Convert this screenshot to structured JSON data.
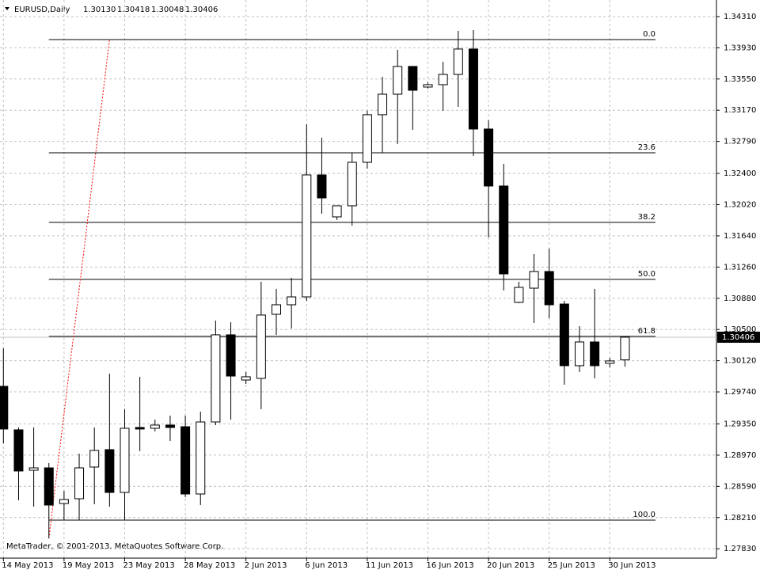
{
  "chart_data": {
    "type": "candlestick",
    "title": "EURUSD,Daily",
    "header_values": [
      "1.30130",
      "1.30418",
      "1.30048",
      "1.30406"
    ],
    "categories": [
      "14 May 2013",
      null,
      null,
      null,
      "19 May 2013",
      null,
      null,
      null,
      "23 May 2013",
      null,
      null,
      null,
      "28 May 2013",
      null,
      null,
      null,
      "2 Jun 2013",
      null,
      null,
      null,
      "6 Jun 2013",
      null,
      null,
      null,
      "11 Jun 2013",
      null,
      null,
      null,
      "16 Jun 2013",
      null,
      null,
      null,
      "20 Jun 2013",
      null,
      null,
      null,
      "25 Jun 2013",
      null,
      null,
      null,
      "30 Jun 2013",
      null
    ],
    "open": [
      1.29808,
      1.29278,
      1.28786,
      1.28815,
      1.28381,
      1.28439,
      1.28825,
      1.29037,
      1.28516,
      1.29307,
      1.29297,
      1.29336,
      1.29316,
      1.28497,
      1.29374,
      1.30435,
      1.29885,
      1.29905,
      1.30685,
      1.30801,
      1.30897,
      1.32382,
      1.31871,
      1.32006,
      1.32536,
      1.33115,
      1.33365,
      1.33703,
      1.33452,
      1.33481,
      1.33606,
      1.33915,
      1.32941,
      1.32247,
      1.3083,
      1.31003,
      1.31206,
      1.3081,
      1.30059,
      1.30348,
      1.30088,
      1.3013
    ],
    "high": [
      1.30271,
      1.29307,
      1.29307,
      1.28873,
      1.28536,
      1.28989,
      1.29307,
      1.29962,
      1.29529,
      1.29924,
      1.29403,
      1.29451,
      1.29451,
      1.295,
      1.30608,
      1.30589,
      1.29982,
      1.31081,
      1.30994,
      1.31129,
      1.32999,
      1.32835,
      1.32006,
      1.32652,
      1.33163,
      1.33577,
      1.33905,
      1.33703,
      1.3351,
      1.3376,
      1.34136,
      1.34146,
      1.33047,
      1.32517,
      1.31081,
      1.31418,
      1.31485,
      1.30849,
      1.30541,
      1.30994,
      1.30155,
      1.30418
    ],
    "low": [
      1.29114,
      1.2842,
      1.28343,
      1.27957,
      1.28179,
      1.28179,
      1.28372,
      1.28343,
      1.28179,
      1.29018,
      1.29259,
      1.29143,
      1.28459,
      1.28362,
      1.29336,
      1.29403,
      1.29837,
      1.29529,
      1.30435,
      1.30512,
      1.30849,
      1.3191,
      1.31833,
      1.31765,
      1.32459,
      1.32652,
      1.32758,
      1.32931,
      1.33433,
      1.33163,
      1.33211,
      1.32613,
      1.3162,
      1.30975,
      1.3082,
      1.30579,
      1.30637,
      1.29827,
      1.29982,
      1.29905,
      1.30039,
      1.30048
    ],
    "close": [
      1.29288,
      1.28777,
      1.28815,
      1.28362,
      1.2843,
      1.28815,
      1.29027,
      1.28516,
      1.29297,
      1.29288,
      1.29336,
      1.29307,
      1.28497,
      1.29374,
      1.30435,
      1.29933,
      1.29924,
      1.30676,
      1.30801,
      1.30897,
      1.32382,
      1.32102,
      1.32006,
      1.32536,
      1.33115,
      1.33365,
      1.33703,
      1.33413,
      1.33481,
      1.33606,
      1.33915,
      1.32941,
      1.32247,
      1.31177,
      1.31013,
      1.31206,
      1.30801,
      1.30059,
      1.30348,
      1.30059,
      1.30117,
      1.30406
    ],
    "ylim": [
      1.27716,
      1.34512
    ],
    "yticks": [
      {
        "value": 1.3431,
        "label": "1.34310"
      },
      {
        "value": 1.3393,
        "label": "1.33930"
      },
      {
        "value": 1.3355,
        "label": "1.33550"
      },
      {
        "value": 1.3317,
        "label": "1.33170"
      },
      {
        "value": 1.3279,
        "label": "1.32790"
      },
      {
        "value": 1.324,
        "label": "1.32400"
      },
      {
        "value": 1.3202,
        "label": "1.32020"
      },
      {
        "value": 1.3164,
        "label": "1.31640"
      },
      {
        "value": 1.3126,
        "label": "1.31260"
      },
      {
        "value": 1.3088,
        "label": "1.30880"
      },
      {
        "value": 1.305,
        "label": "1.30500"
      },
      {
        "value": 1.3012,
        "label": "1.30120"
      },
      {
        "value": 1.2974,
        "label": "1.29740"
      },
      {
        "value": 1.2935,
        "label": "1.29350"
      },
      {
        "value": 1.2897,
        "label": "1.28970"
      },
      {
        "value": 1.2859,
        "label": "1.28590"
      },
      {
        "value": 1.2821,
        "label": "1.28210"
      },
      {
        "value": 1.2783,
        "label": "1.27830"
      }
    ],
    "grid": true,
    "current_price": {
      "value": 1.30406,
      "label": "1.30406"
    },
    "fibo": [
      {
        "label": "0.0",
        "value": 1.3403
      },
      {
        "label": "23.6",
        "value": 1.32652
      },
      {
        "label": "38.2",
        "value": 1.31804
      },
      {
        "label": "50.0",
        "value": 1.3111
      },
      {
        "label": "61.8",
        "value": 1.30416
      },
      {
        "label": "100.0",
        "value": 1.28179
      }
    ],
    "trendline": {
      "from_index": 3,
      "from_value": 1.27957,
      "to_index": 7,
      "to_value": 1.3403
    },
    "footer": "MetaTrader, © 2001-2013, MetaQuotes Software Corp."
  }
}
